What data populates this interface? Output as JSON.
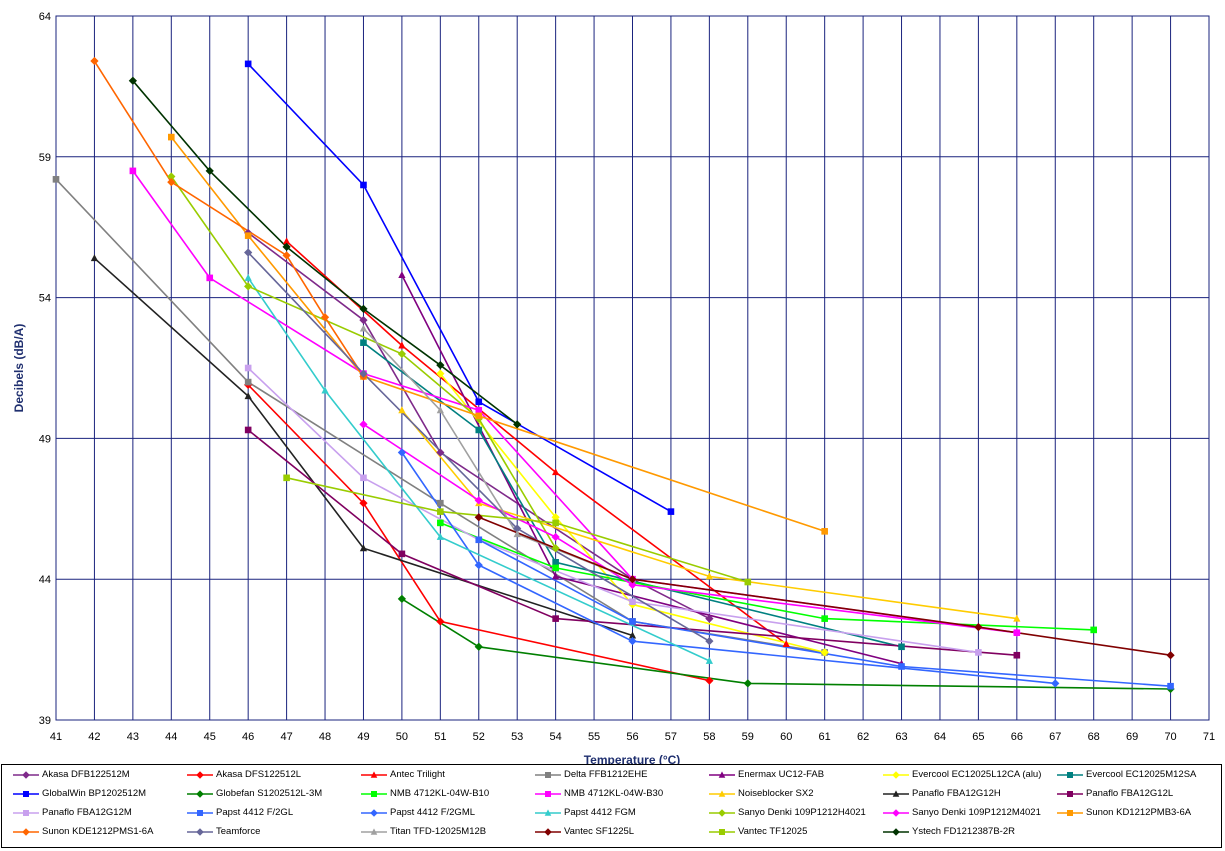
{
  "chart_data": {
    "type": "line",
    "title": "",
    "xlabel": "Temperature (°C)",
    "ylabel": "Decibels (dB/A)",
    "xlim": [
      41,
      71
    ],
    "ylim": [
      39,
      64
    ],
    "xticks": [
      41,
      42,
      43,
      44,
      45,
      46,
      47,
      48,
      49,
      50,
      51,
      52,
      53,
      54,
      55,
      56,
      57,
      58,
      59,
      60,
      61,
      62,
      63,
      64,
      65,
      66,
      67,
      68,
      69,
      70,
      71
    ],
    "yticks": [
      39,
      44,
      49,
      54,
      59,
      64
    ],
    "grid": "vertical-and-horizontal",
    "legend_position": "bottom",
    "series": [
      {
        "name": "Akasa DFB122512M",
        "color": "#7f2a8a",
        "marker": "diamond",
        "points": [
          [
            46,
            56.3
          ],
          [
            49,
            53.2
          ],
          [
            51,
            48.5
          ],
          [
            56,
            44
          ],
          [
            58,
            42.6
          ]
        ]
      },
      {
        "name": "Akasa DFS122512L",
        "color": "#ff0000",
        "marker": "diamond",
        "points": [
          [
            46,
            50.9
          ],
          [
            49,
            46.7
          ],
          [
            51,
            42.5
          ],
          [
            58,
            40.4
          ]
        ]
      },
      {
        "name": "Antec Trilight",
        "color": "#ff0000",
        "marker": "triangle",
        "points": [
          [
            47,
            56
          ],
          [
            50,
            52.3
          ],
          [
            54,
            47.8
          ],
          [
            60,
            41.7
          ]
        ]
      },
      {
        "name": "Delta FFB1212EHE",
        "color": "#808080",
        "marker": "square",
        "points": [
          [
            41,
            58.2
          ],
          [
            46,
            51
          ],
          [
            51,
            46.7
          ],
          [
            56,
            42.5
          ],
          [
            61,
            41.4
          ]
        ]
      },
      {
        "name": "Enermax UC12-FAB",
        "color": "#800080",
        "marker": "triangle",
        "points": [
          [
            50,
            54.8
          ],
          [
            54,
            44.1
          ],
          [
            63,
            41.0
          ]
        ]
      },
      {
        "name": "Evercool EC12025L12CA (alu)",
        "color": "#ffff00",
        "marker": "diamond",
        "points": [
          [
            51,
            51.3
          ],
          [
            54,
            46.2
          ],
          [
            56,
            43.1
          ],
          [
            61,
            41.4
          ]
        ]
      },
      {
        "name": "Evercool EC12025M12SA",
        "color": "#008080",
        "marker": "square",
        "points": [
          [
            49,
            52.4
          ],
          [
            52,
            49.3
          ],
          [
            54,
            44.6
          ],
          [
            63,
            41.6
          ]
        ]
      },
      {
        "name": "GlobalWin BP1202512M",
        "color": "#0000ff",
        "marker": "square",
        "points": [
          [
            46,
            62.3
          ],
          [
            49,
            58
          ],
          [
            52,
            50.3
          ],
          [
            57,
            46.4
          ]
        ]
      },
      {
        "name": "Globefan S1202512L-3M",
        "color": "#007f00",
        "marker": "diamond",
        "points": [
          [
            50,
            43.3
          ],
          [
            52,
            41.6
          ],
          [
            59,
            40.3
          ],
          [
            70,
            40.1
          ]
        ]
      },
      {
        "name": "NMB 4712KL-04W-B10",
        "color": "#00ff00",
        "marker": "square",
        "points": [
          [
            51,
            46
          ],
          [
            54,
            44.4
          ],
          [
            61,
            42.6
          ],
          [
            68,
            42.2
          ]
        ]
      },
      {
        "name": "NMB 4712KL-04W-B30",
        "color": "#ff00ff",
        "marker": "square",
        "points": [
          [
            43,
            58.5
          ],
          [
            45,
            54.7
          ],
          [
            49,
            51.3
          ],
          [
            52,
            50
          ],
          [
            56,
            44
          ],
          [
            66,
            42.1
          ]
        ]
      },
      {
        "name": "Noiseblocker SX2",
        "color": "#ffcc00",
        "marker": "triangle",
        "points": [
          [
            50,
            50
          ],
          [
            52,
            46.7
          ],
          [
            58,
            44.1
          ],
          [
            66,
            42.6
          ]
        ]
      },
      {
        "name": "Panaflo FBA12G12H",
        "color": "#222222",
        "marker": "triangle",
        "points": [
          [
            42,
            55.4
          ],
          [
            46,
            50.5
          ],
          [
            49,
            45.1
          ],
          [
            56,
            42
          ]
        ]
      },
      {
        "name": "Panaflo FBA12G12L",
        "color": "#800060",
        "marker": "square",
        "points": [
          [
            46,
            49.3
          ],
          [
            50,
            44.9
          ],
          [
            54,
            42.6
          ],
          [
            66,
            41.3
          ]
        ]
      },
      {
        "name": "Panaflo FBA12G12M",
        "color": "#c8a0ee",
        "marker": "square",
        "points": [
          [
            46,
            51.5
          ],
          [
            49,
            47.6
          ],
          [
            52,
            45.4
          ],
          [
            56,
            43.2
          ],
          [
            65,
            41.4
          ]
        ]
      },
      {
        "name": "Papst 4412 F/2GL",
        "color": "#3366ff",
        "marker": "square",
        "points": [
          [
            52,
            45.4
          ],
          [
            56,
            42.5
          ],
          [
            63,
            40.9
          ],
          [
            70,
            40.2
          ]
        ]
      },
      {
        "name": "Papst 4412 F/2GML",
        "color": "#3366ff",
        "marker": "diamond",
        "points": [
          [
            50,
            48.5
          ],
          [
            52,
            44.5
          ],
          [
            56,
            41.8
          ],
          [
            67,
            40.3
          ]
        ]
      },
      {
        "name": "Papst 4412 FGM",
        "color": "#33cccc",
        "marker": "triangle",
        "points": [
          [
            46,
            54.7
          ],
          [
            48,
            50.7
          ],
          [
            51,
            45.5
          ],
          [
            58,
            41.1
          ]
        ]
      },
      {
        "name": "Sanyo Denki 109P1212H4021",
        "color": "#99cc00",
        "marker": "diamond",
        "points": [
          [
            44,
            58.3
          ],
          [
            46,
            54.4
          ],
          [
            50,
            52
          ],
          [
            52,
            49.7
          ],
          [
            54,
            45.1
          ]
        ]
      },
      {
        "name": "Sanyo Denki 109P1212M4021",
        "color": "#ff00ff",
        "marker": "diamond",
        "points": [
          [
            49,
            49.5
          ],
          [
            52,
            46.8
          ],
          [
            54,
            45.5
          ],
          [
            56,
            43.8
          ],
          [
            66,
            42.1
          ]
        ]
      },
      {
        "name": "Sunon KD1212PMB3-6A",
        "color": "#ff9900",
        "marker": "square",
        "points": [
          [
            44,
            59.7
          ],
          [
            46,
            56.2
          ],
          [
            49,
            51.2
          ],
          [
            52,
            49.8
          ],
          [
            61,
            45.7
          ]
        ]
      },
      {
        "name": "Sunon KDE1212PMS1-6A",
        "color": "#ff6600",
        "marker": "diamond",
        "points": [
          [
            42,
            62.4
          ],
          [
            44,
            58.1
          ],
          [
            47,
            55.5
          ],
          [
            48,
            53.3
          ],
          [
            49,
            51.2
          ]
        ]
      },
      {
        "name": "Teamforce",
        "color": "#666699",
        "marker": "diamond",
        "points": [
          [
            46,
            55.6
          ],
          [
            49,
            51.3
          ],
          [
            53,
            45.8
          ],
          [
            58,
            41.8
          ]
        ]
      },
      {
        "name": "Titan TFD-12025M12B",
        "color": "#a0a0a0",
        "marker": "triangle",
        "points": [
          [
            49,
            52.9
          ],
          [
            51,
            50
          ],
          [
            53,
            45.6
          ],
          [
            56,
            44
          ]
        ]
      },
      {
        "name": "Vantec SF1225L",
        "color": "#800000",
        "marker": "diamond",
        "points": [
          [
            52,
            46.2
          ],
          [
            56,
            44
          ],
          [
            65,
            42.3
          ],
          [
            70,
            41.3
          ]
        ]
      },
      {
        "name": "Vantec TF12025",
        "color": "#99cc00",
        "marker": "square",
        "points": [
          [
            47,
            47.6
          ],
          [
            51,
            46.4
          ],
          [
            54,
            46
          ],
          [
            59,
            43.9
          ]
        ]
      },
      {
        "name": "Ystech FD1212387B-2R",
        "color": "#003300",
        "marker": "diamond",
        "points": [
          [
            43,
            61.7
          ],
          [
            45,
            58.5
          ],
          [
            47,
            55.8
          ],
          [
            49,
            53.6
          ],
          [
            51,
            51.6
          ],
          [
            53,
            49.5
          ]
        ]
      }
    ]
  }
}
